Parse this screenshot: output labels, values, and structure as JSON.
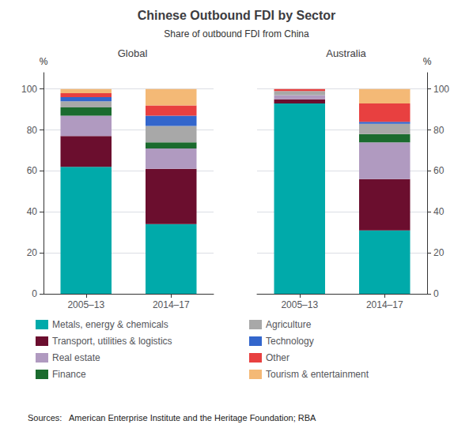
{
  "title": "Chinese Outbound FDI by Sector",
  "subtitle": "Share of outbound FDI from China",
  "source": "Sources:   American Enterprise Institute and the Heritage Foundation; RBA",
  "chart_data": [
    {
      "type": "bar",
      "title": "Global",
      "ylabel": "%",
      "categories": [
        "2005–13",
        "2014–17"
      ],
      "series": [
        {
          "name": "Metals, energy & chemicals",
          "color": "#00AAAA",
          "values": [
            62,
            34
          ]
        },
        {
          "name": "Transport, utilities & logistics",
          "color": "#6B0E2E",
          "values": [
            15,
            27
          ]
        },
        {
          "name": "Real estate",
          "color": "#B09AC0",
          "values": [
            10,
            10
          ]
        },
        {
          "name": "Finance",
          "color": "#1B6B2E",
          "values": [
            4,
            3
          ]
        },
        {
          "name": "Agriculture",
          "color": "#A8A8A8",
          "values": [
            3,
            8
          ]
        },
        {
          "name": "Technology",
          "color": "#3366CC",
          "values": [
            2,
            5
          ]
        },
        {
          "name": "Other",
          "color": "#E84040",
          "values": [
            2,
            5
          ]
        },
        {
          "name": "Tourism & entertainment",
          "color": "#F4B976",
          "values": [
            2,
            8
          ]
        }
      ],
      "ylim": [
        0,
        108
      ],
      "yticks": [
        0,
        20,
        40,
        60,
        80,
        100
      ],
      "stacked": true,
      "grid": true,
      "legend": "bottom"
    },
    {
      "type": "bar",
      "title": "Australia",
      "ylabel": "%",
      "categories": [
        "2005–13",
        "2014–17"
      ],
      "series": [
        {
          "name": "Metals, energy & chemicals",
          "color": "#00AAAA",
          "values": [
            93,
            31
          ]
        },
        {
          "name": "Transport, utilities & logistics",
          "color": "#6B0E2E",
          "values": [
            2,
            25
          ]
        },
        {
          "name": "Real estate",
          "color": "#B09AC0",
          "values": [
            2,
            18
          ]
        },
        {
          "name": "Finance",
          "color": "#1B6B2E",
          "values": [
            0,
            4
          ]
        },
        {
          "name": "Agriculture",
          "color": "#A8A8A8",
          "values": [
            2,
            5
          ]
        },
        {
          "name": "Technology",
          "color": "#3366CC",
          "values": [
            0,
            1
          ]
        },
        {
          "name": "Other",
          "color": "#E84040",
          "values": [
            1,
            9
          ]
        },
        {
          "name": "Tourism & entertainment",
          "color": "#F4B976",
          "values": [
            0,
            7
          ]
        }
      ],
      "ylim": [
        0,
        108
      ],
      "yticks": [
        0,
        20,
        40,
        60,
        80,
        100
      ],
      "stacked": true,
      "grid": true,
      "legend": "bottom"
    }
  ]
}
